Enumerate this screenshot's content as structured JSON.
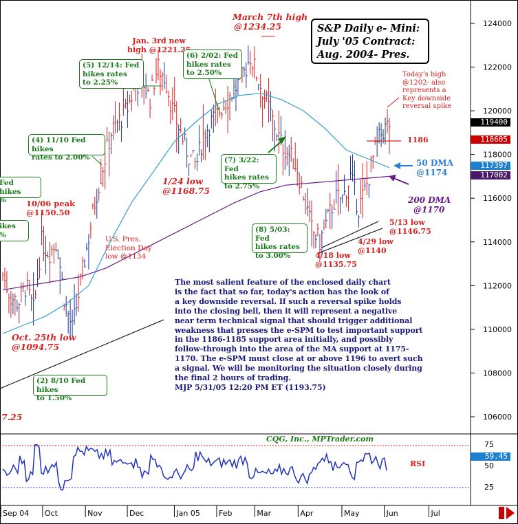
{
  "title": {
    "line1": "S&P Daily e- Mini:",
    "line2": "July '05 Contract:",
    "line3": "Aug. 2004- Pres."
  },
  "credit": "CQG, Inc., MPTrader.com",
  "commentary": [
    "The most salient feature of the enclosed daily chart",
    "is the fact that so far, today's action has the look of",
    "a key downside reversal. If such a reversal spike holds",
    "into the closing bell, then it will represent a negative",
    "near term technical signal that should trigger additional",
    "weakness that presses the e-SPM to test important support",
    "in the 1186-1185 support area initially, and possibly",
    "follow-through into  the area of the MA support at 1175-",
    "1170. The e-SPM must close at or above 1196 to avert such",
    "a signal. We will be monitoring the situation closely during",
    "the final 2 hours of trading.",
    "MJP 5/31/05 12:20 PM ET (1193.75)"
  ],
  "fed_boxes": [
    {
      "id": "fed-2",
      "lines": [
        "(2) 8/10 Fed hikes",
        "to 1.50%"
      ]
    },
    {
      "id": "fed-3a",
      "lines": [
        "Fed hikes",
        "%"
      ]
    },
    {
      "id": "fed-3b",
      "lines": [
        "ikes",
        "%"
      ]
    },
    {
      "id": "fed-4",
      "lines": [
        "(4) 11/10 Fed hikes",
        "rates to 2.00%"
      ]
    },
    {
      "id": "fed-5",
      "lines": [
        "(5) 12/14: Fed",
        "hikes rates",
        "to 2.25%"
      ]
    },
    {
      "id": "fed-6",
      "lines": [
        "(6) 2/02: Fed",
        "hikes rates",
        "to 2.50%"
      ]
    },
    {
      "id": "fed-7",
      "lines": [
        "(7) 3/22: Fed",
        "hikes rates",
        "to 2.75%"
      ]
    },
    {
      "id": "fed-8",
      "lines": [
        "(8) 5/03: Fed",
        "hikes rates",
        "to 3.00%"
      ]
    }
  ],
  "annotations": {
    "march_high": [
      "March 7th high",
      "@1234.25"
    ],
    "jan_high": [
      "Jan. 3rd new",
      "high @1221.25"
    ],
    "jan24_low": [
      "1/24 low",
      "@1168.75"
    ],
    "oct06_peak": [
      "10/06 peak",
      "@1150.50"
    ],
    "election": [
      "U.S. Pres.",
      "Election Day",
      "low @1134"
    ],
    "oct25_low": [
      "Oct. 25th low",
      "@1094.75"
    ],
    "aug_low": "7.25",
    "todays_high": [
      "Today's high",
      "@1202- also",
      "represents a",
      "Key downside",
      "reversal spike"
    ],
    "level_1186": "1186",
    "dma50": [
      "50 DMA",
      "@1174"
    ],
    "dma200": [
      "200 DMA",
      "@1170"
    ],
    "low_0513": [
      "5/13 low",
      "@1146.75"
    ],
    "low_0429": [
      "4/29 low",
      "@1140"
    ],
    "low_0418": [
      "4/18 low",
      "@1135.75"
    ]
  },
  "price_tags": [
    {
      "value": "119400",
      "bg": "#000000"
    },
    {
      "value": "118605",
      "bg": "#cc0000"
    },
    {
      "value": "117397",
      "bg": "#1f7fd0"
    },
    {
      "value": "117002",
      "bg": "#4a1a6a"
    }
  ],
  "rsi": {
    "label": "RSI",
    "value_tag": "59.45",
    "ticks": [
      "75",
      "50",
      "25"
    ]
  },
  "colors": {
    "bars": "#d42020",
    "bars_up": "#1a3a9a",
    "ma50": "#3a9fd0",
    "ma200": "#6a1a8a",
    "fed_green": "#1a7a1a",
    "annotation_red": "#d42020"
  },
  "chart_data": {
    "type": "ohlc",
    "y_axis": {
      "ticks": [
        106000,
        108000,
        110000,
        112000,
        114000,
        116000,
        118000,
        120000,
        122000,
        124000
      ],
      "range": [
        105000,
        125000
      ]
    },
    "x_axis": {
      "ticks": [
        "Sep 04",
        "Oct",
        "Nov",
        "Dec",
        "Jan 05",
        "Feb",
        "Mar",
        "Apr",
        "May",
        "Jun",
        "Jul"
      ]
    },
    "series": [
      {
        "name": "50 DMA",
        "values": [
          1098,
          1102,
          1106,
          1112,
          1120,
          1140,
          1158,
          1172,
          1186,
          1195,
          1203,
          1207,
          1208,
          1205,
          1200,
          1192,
          1182,
          1178,
          1174
        ]
      },
      {
        "name": "200 DMA",
        "values": [
          1118,
          1120,
          1122,
          1124,
          1128,
          1134,
          1140,
          1146,
          1152,
          1158,
          1163,
          1166,
          1167,
          1168,
          1169,
          1170
        ]
      }
    ],
    "close_points": [
      1125,
      1115,
      1112,
      1120,
      1108,
      1140,
      1135,
      1140,
      1113,
      1100,
      1120,
      1140,
      1160,
      1175,
      1190,
      1195,
      1200,
      1210,
      1215,
      1205,
      1220,
      1215,
      1200,
      1190,
      1180,
      1175,
      1190,
      1195,
      1200,
      1205,
      1210,
      1215,
      1225,
      1215,
      1205,
      1195,
      1185,
      1180,
      1175,
      1160,
      1145,
      1140,
      1150,
      1160,
      1160,
      1170,
      1155,
      1165,
      1180,
      1190,
      1194
    ]
  }
}
